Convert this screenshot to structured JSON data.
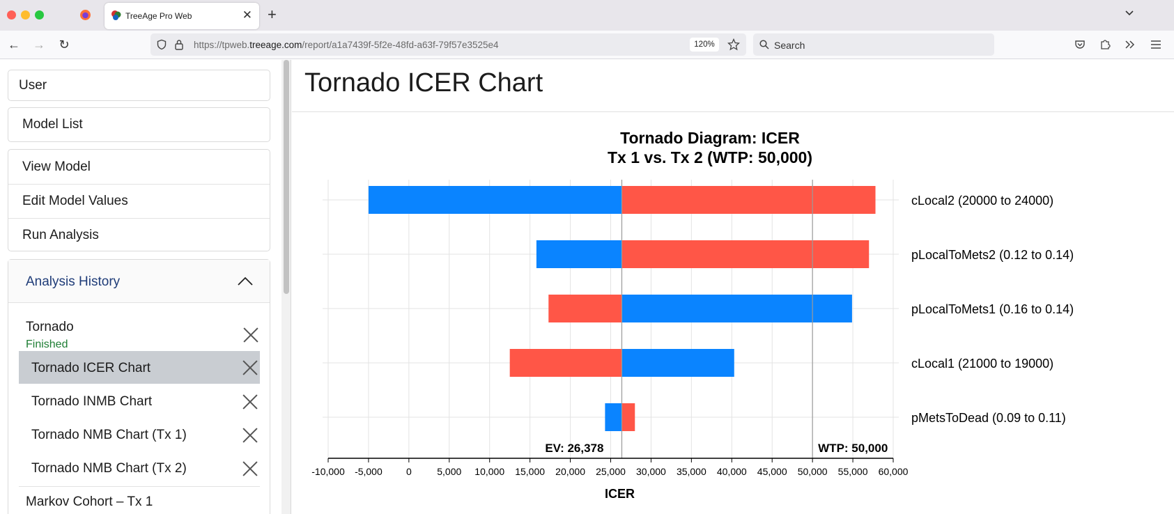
{
  "browser": {
    "tab_title": "TreeAge Pro Web",
    "url_prefix": "https://tpweb.",
    "url_domain": "treeage.com",
    "url_path": "/report/a1a7439f-5f2e-48fd-a63f-79f57e3525e4",
    "zoom": "120%",
    "search_placeholder": "Search"
  },
  "sidebar": {
    "user_label": "User",
    "model_list_label": "Model List",
    "model_items": [
      {
        "label": "View Model"
      },
      {
        "label": "Edit Model Values"
      },
      {
        "label": "Run Analysis"
      }
    ],
    "history_title": "Analysis History",
    "history": {
      "analysis_name": "Tornado",
      "status": "Finished",
      "status_color": "#1e7e34",
      "reports": [
        {
          "label": "Tornado ICER Chart",
          "selected": true
        },
        {
          "label": "Tornado INMB Chart",
          "selected": false
        },
        {
          "label": "Tornado NMB Chart (Tx 1)",
          "selected": false
        },
        {
          "label": "Tornado NMB Chart (Tx 2)",
          "selected": false
        }
      ],
      "next_analysis": "Markov Cohort – Tx 1"
    }
  },
  "main": {
    "page_title": "Tornado ICER Chart"
  },
  "chart_data": {
    "type": "bar",
    "orientation": "horizontal",
    "title": "Tornado Diagram: ICER",
    "subtitle": "Tx 1 vs. Tx 2 (WTP: 50,000)",
    "xlabel": "ICER",
    "xlim": [
      -10000,
      60000
    ],
    "x_ticks": [
      -10000,
      -5000,
      0,
      5000,
      10000,
      15000,
      20000,
      25000,
      30000,
      35000,
      40000,
      45000,
      50000,
      55000,
      60000
    ],
    "x_tick_labels": [
      "-10,000",
      "-5,000",
      "0",
      "5,000",
      "10,000",
      "15,000",
      "20,000",
      "25,000",
      "30,000",
      "35,000",
      "40,000",
      "45,000",
      "50,000",
      "55,000",
      "60,000"
    ],
    "grid": true,
    "ev": 26378,
    "ev_label": "EV: 26,378",
    "wtp": 50000,
    "wtp_label": "WTP: 50,000",
    "colors": {
      "low": "#0a84ff",
      "high": "#ff5647"
    },
    "bars": [
      {
        "label": "cLocal2 (20000 to 24000)",
        "blue_end": -5000,
        "red_end": 57800
      },
      {
        "label": "pLocalToMets2 (0.12 to 0.14)",
        "blue_end": 15800,
        "red_end": 57000
      },
      {
        "label": "pLocalToMets1 (0.16 to 0.14)",
        "blue_end": 54900,
        "red_end": 17300
      },
      {
        "label": "cLocal1 (21000 to 19000)",
        "blue_end": 40300,
        "red_end": 12500
      },
      {
        "label": "pMetsToDead (0.09 to 0.11)",
        "blue_end": 24300,
        "red_end": 28000
      }
    ]
  }
}
